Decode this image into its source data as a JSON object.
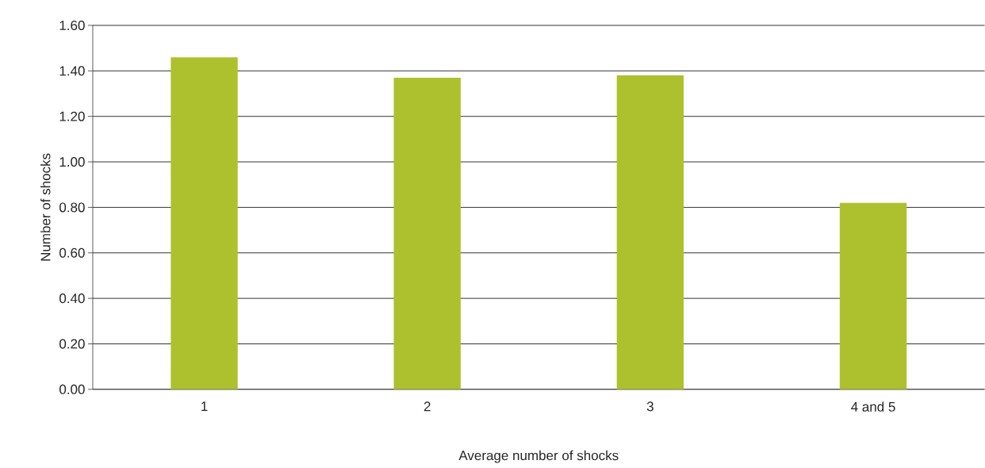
{
  "chart_data": {
    "type": "bar",
    "xlabel": "Average number of shocks",
    "ylabel": "Number of shocks",
    "categories": [
      "1",
      "2",
      "3",
      "4 and 5"
    ],
    "values": [
      1.46,
      1.37,
      1.38,
      0.82
    ],
    "color": "#adc12e",
    "ylim": [
      0,
      1.6
    ],
    "yticks": [
      {
        "value": 0,
        "label": "0.00"
      },
      {
        "value": 0.2,
        "label": "0.20"
      },
      {
        "value": 0.4,
        "label": "0.40"
      },
      {
        "value": 0.6,
        "label": "0.60"
      },
      {
        "value": 0.8,
        "label": "0.80"
      },
      {
        "value": 1,
        "label": "1.00"
      },
      {
        "value": 1.2,
        "label": "1.20"
      },
      {
        "value": 1.4,
        "label": "1.40"
      },
      {
        "value": 1.6,
        "label": "1.60"
      }
    ],
    "grid": "y"
  }
}
